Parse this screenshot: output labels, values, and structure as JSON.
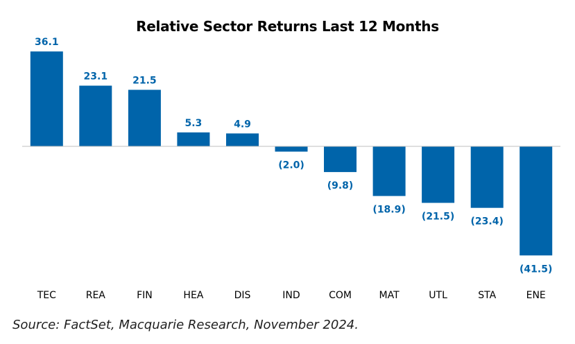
{
  "chart_data": {
    "type": "bar",
    "title": "Relative Sector Returns Last 12 Months",
    "categories": [
      "TEC",
      "REA",
      "FIN",
      "HEA",
      "DIS",
      "IND",
      "COM",
      "MAT",
      "UTL",
      "STA",
      "ENE"
    ],
    "values": [
      36.1,
      23.1,
      21.5,
      5.3,
      4.9,
      -2.0,
      -9.8,
      -18.9,
      -21.5,
      -23.4,
      -41.5
    ],
    "value_labels": [
      "36.1",
      "23.1",
      "21.5",
      "5.3",
      "4.9",
      "(2.0)",
      "(9.8)",
      "(18.9)",
      "(21.5)",
      "(23.4)",
      "(41.5)"
    ],
    "xlabel": "",
    "ylabel": "",
    "ylim": [
      -41.5,
      36.1
    ],
    "grid": false,
    "legend": "none"
  },
  "colors": {
    "bar": "#0064AA",
    "label": "#0064AA",
    "axis": "#BFBFBF"
  },
  "source": "Source: FactSet, Macquarie Research, November 2024."
}
